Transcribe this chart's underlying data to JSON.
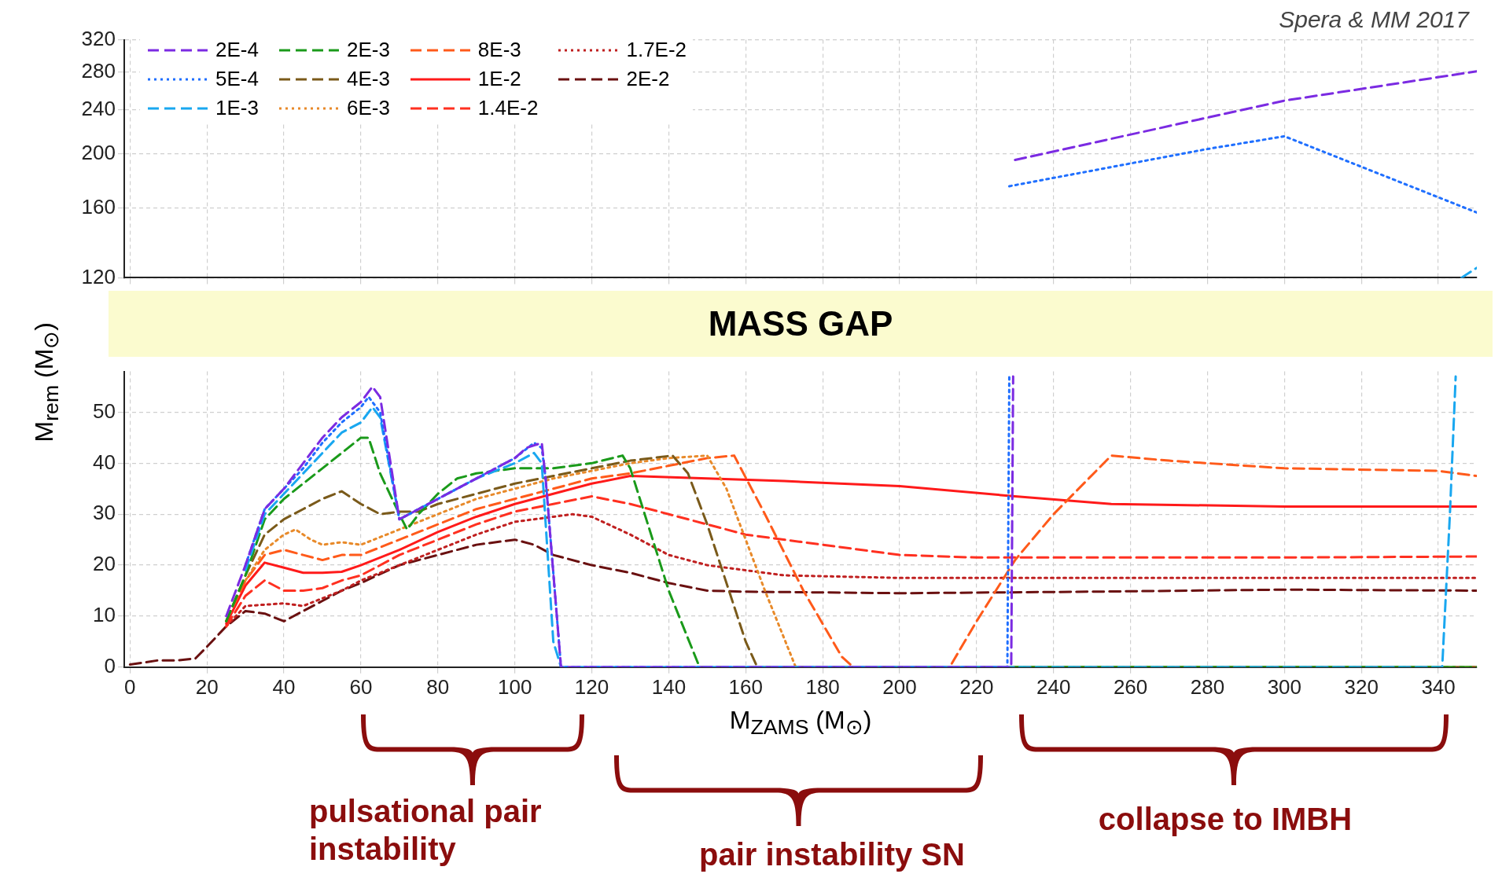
{
  "chart_data": [
    {
      "type": "line",
      "annotations": [
        "Spera & MM 2017"
      ],
      "xlim": [
        -1.5,
        350
      ],
      "xticks": [
        0,
        20,
        40,
        60,
        80,
        100,
        120,
        140,
        160,
        180,
        200,
        220,
        240,
        260,
        280,
        300,
        320,
        340
      ],
      "ylim": [
        120,
        320
      ],
      "yticks": [
        120,
        160,
        200,
        240,
        280,
        320
      ],
      "log": "y",
      "tick_labels": "y",
      "grid": true,
      "legend": "top left",
      "marker": "none",
      "series": [
        {
          "name": "2E-4",
          "color": "#7b2be2",
          "line_style": "dashed",
          "x": [
            230,
            300,
            350
          ],
          "values": [
            195,
            249,
            281
          ]
        },
        {
          "name": "5E-4",
          "color": "#1f6fff",
          "line_style": "dotted",
          "x": [
            228.5,
            280,
            300,
            350
          ],
          "values": [
            175,
            204,
            215,
            157
          ]
        },
        {
          "name": "1E-3",
          "color": "#19a7f0",
          "line_style": "dashed",
          "x": [
            346,
            350
          ],
          "values": [
            120,
            125
          ]
        },
        {
          "name": "2E-3",
          "color": "#1a9a1a",
          "line_style": "dashed"
        },
        {
          "name": "4E-3",
          "color": "#7a5a1a",
          "line_style": "dashed"
        },
        {
          "name": "6E-3",
          "color": "#e88a2a",
          "line_style": "dotted"
        },
        {
          "name": "8E-3",
          "color": "#ff5a1a",
          "line_style": "dashed"
        },
        {
          "name": "1E-2",
          "color": "#ff1a1a",
          "line_style": "solid"
        },
        {
          "name": "1.4E-2",
          "color": "#ff3020",
          "line_style": "dashed"
        },
        {
          "name": "1.7E-2",
          "color": "#c02020",
          "line_style": "dotted"
        },
        {
          "name": "2E-2",
          "color": "#6a1010",
          "line_style": "dashed"
        }
      ]
    },
    {
      "type": "line",
      "title": "MASS GAP",
      "xlabel": "M$_{ZAMS}$ (M$_{⊙}$)",
      "ylabel": "M$_{rem}$ (M$_{⊙}$)",
      "annotations": [
        "pulsational pair instability",
        "pair instability SN",
        "collapse to IMBH"
      ],
      "xlim": [
        -1.5,
        350
      ],
      "xticks": [
        0,
        20,
        40,
        60,
        80,
        100,
        120,
        140,
        160,
        180,
        200,
        220,
        240,
        260,
        280,
        300,
        320,
        340
      ],
      "ylim": [
        0,
        58
      ],
      "yticks": [
        0,
        10,
        20,
        30,
        40,
        50
      ],
      "grid": true,
      "marker": "none",
      "series": [
        {
          "color": "#7b2be2",
          "line_style": "dashed",
          "x": [
            25,
            30,
            35,
            40,
            45,
            50,
            55,
            60,
            63,
            65,
            70,
            75,
            80,
            85,
            90,
            95,
            100,
            103,
            107,
            108,
            112,
            229,
            229.5
          ],
          "values": [
            10,
            20,
            31,
            35,
            40,
            45,
            49,
            52,
            55,
            53,
            29,
            31,
            33,
            35,
            37,
            39,
            41,
            43,
            44,
            37,
            0,
            0,
            57
          ]
        },
        {
          "color": "#1f6fff",
          "line_style": "dotted",
          "x": [
            30,
            35,
            40,
            45,
            50,
            55,
            60,
            62,
            65,
            70,
            75,
            80,
            85,
            90,
            95,
            100,
            105,
            107,
            108,
            112,
            228,
            228.5
          ],
          "values": [
            20,
            31,
            35,
            39,
            44,
            48,
            51,
            53,
            50,
            29,
            31,
            33,
            35,
            37,
            39,
            41,
            44,
            43,
            37,
            0,
            0,
            57
          ]
        },
        {
          "color": "#19a7f0",
          "line_style": "dashed",
          "x": [
            30,
            35,
            40,
            45,
            50,
            55,
            60,
            63,
            65,
            70,
            75,
            80,
            90,
            100,
            105,
            107,
            110,
            112,
            341,
            343,
            344.5
          ],
          "values": [
            19,
            30,
            34,
            38,
            42,
            46,
            48,
            51,
            49,
            29,
            31,
            33,
            37,
            40,
            42,
            40,
            5,
            0,
            0,
            30,
            57
          ]
        },
        {
          "color": "#1a9a1a",
          "line_style": "dashed",
          "x": [
            25,
            30,
            35,
            40,
            45,
            50,
            55,
            60,
            62,
            65,
            70,
            72,
            75,
            80,
            85,
            90,
            100,
            110,
            120,
            128,
            130,
            140,
            148,
            350
          ],
          "values": [
            9,
            18,
            29,
            33,
            36,
            39,
            42,
            45,
            45,
            38,
            30,
            27,
            30,
            34,
            37,
            38,
            39,
            39,
            40,
            41.5,
            39,
            15,
            0,
            0
          ]
        },
        {
          "color": "#7a5a1a",
          "line_style": "dashed",
          "x": [
            25,
            30,
            35,
            40,
            45,
            50,
            55,
            60,
            65,
            70,
            75,
            80,
            90,
            100,
            110,
            120,
            130,
            141,
            145,
            150,
            160,
            163,
            350
          ],
          "values": [
            9,
            18,
            26,
            29,
            31,
            33,
            34.5,
            32,
            30,
            30.5,
            30.5,
            32,
            34,
            36,
            37.5,
            39,
            40.5,
            41.5,
            38,
            28,
            5,
            0,
            0
          ]
        },
        {
          "color": "#e88a2a",
          "line_style": "dotted",
          "x": [
            30,
            35,
            40,
            43,
            47,
            50,
            55,
            60,
            70,
            80,
            90,
            100,
            110,
            120,
            130,
            140,
            150,
            155,
            165,
            173,
            350
          ],
          "values": [
            17,
            23,
            26,
            27,
            25,
            24,
            24.5,
            24,
            27,
            30,
            33,
            35,
            37,
            38.5,
            40,
            41,
            41.5,
            35,
            15,
            0,
            0
          ]
        },
        {
          "color": "#ff5a1a",
          "line_style": "dashed",
          "x": [
            25,
            30,
            35,
            40,
            45,
            50,
            55,
            60,
            70,
            80,
            90,
            100,
            110,
            120,
            130,
            140,
            150,
            157,
            165,
            175,
            185,
            188,
            213,
            220,
            230,
            240,
            255,
            270,
            300,
            340,
            350
          ],
          "values": [
            9,
            17,
            22,
            23,
            22,
            21,
            22,
            22,
            25,
            28,
            31,
            33,
            35,
            37,
            38,
            39.5,
            41,
            41.5,
            30,
            15,
            2,
            0,
            0,
            9,
            21,
            30,
            41.5,
            40.5,
            39,
            38.5,
            37.5
          ]
        },
        {
          "color": "#ff1a1a",
          "line_style": "solid",
          "x": [
            25,
            30,
            35,
            40,
            45,
            50,
            55,
            60,
            70,
            80,
            90,
            100,
            110,
            120,
            130,
            150,
            170,
            200,
            230,
            255,
            300,
            350
          ],
          "values": [
            8.5,
            16,
            20.5,
            19.5,
            18.5,
            18.5,
            18.7,
            20,
            23,
            26.5,
            29.5,
            32,
            34,
            36,
            37.5,
            37,
            36.5,
            35.5,
            33.5,
            32,
            31.5,
            31.5
          ]
        },
        {
          "color": "#ff3020",
          "line_style": "dashed",
          "x": [
            25,
            30,
            35,
            40,
            45,
            50,
            55,
            60,
            70,
            80,
            90,
            100,
            110,
            120,
            130,
            140,
            160,
            180,
            200,
            220,
            260,
            300,
            350
          ],
          "values": [
            8,
            14,
            17,
            15,
            15,
            15.5,
            17,
            18,
            22,
            25,
            28,
            30.5,
            32,
            33.5,
            32,
            30,
            26,
            24,
            22,
            21.5,
            21.5,
            21.5,
            21.7
          ]
        },
        {
          "color": "#c02020",
          "line_style": "dotted",
          "x": [
            25,
            30,
            40,
            45,
            55,
            60,
            70,
            80,
            90,
            100,
            110,
            115,
            120,
            130,
            140,
            150,
            170,
            200,
            250,
            350
          ],
          "values": [
            8,
            12,
            12.5,
            12,
            15,
            17,
            20,
            23,
            26,
            28.5,
            29.5,
            30,
            29.5,
            26,
            22,
            20,
            18,
            17.5,
            17.5,
            17.5
          ]
        },
        {
          "color": "#6a1010",
          "line_style": "dashed",
          "x": [
            0,
            7,
            12,
            17,
            20,
            25,
            30,
            35,
            40,
            45,
            50,
            55,
            60,
            70,
            80,
            90,
            100,
            105,
            110,
            120,
            130,
            140,
            150,
            160,
            200,
            250,
            300,
            350
          ],
          "values": [
            0.5,
            1.3,
            1.3,
            1.7,
            4,
            8,
            11,
            10.5,
            9,
            11,
            13,
            15,
            16.5,
            20,
            22,
            24,
            25,
            24,
            22,
            20,
            18.5,
            16.5,
            15,
            14.8,
            14.5,
            14.8,
            15.2,
            15
          ]
        }
      ]
    }
  ]
}
